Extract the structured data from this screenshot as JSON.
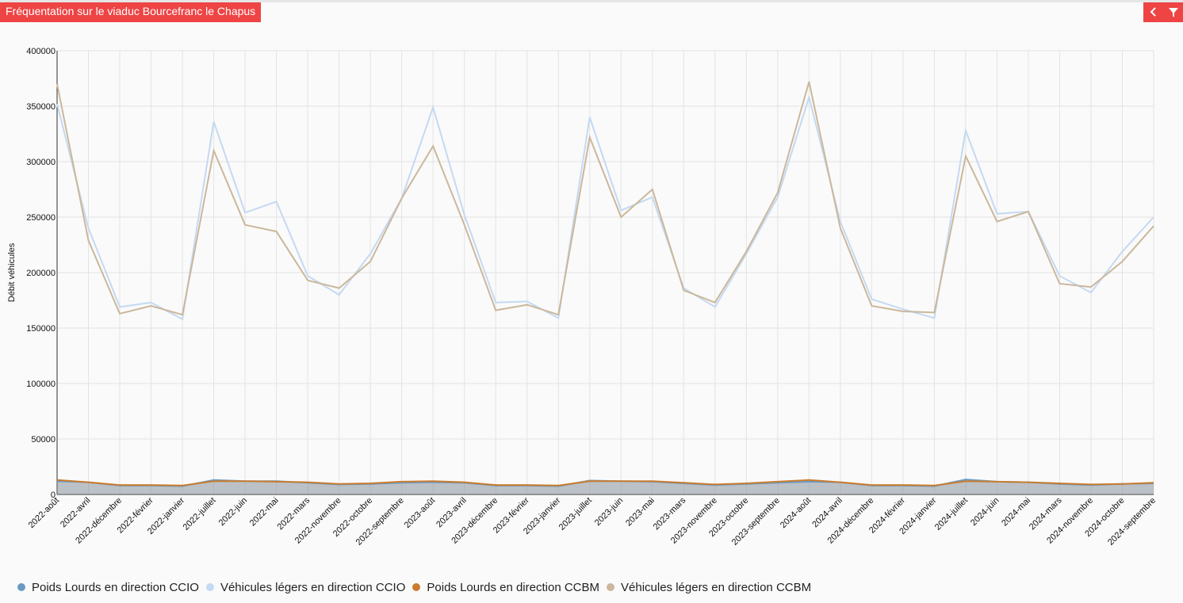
{
  "header": {
    "title": "Fréquentation sur le viaduc Bourcefranc le Chapus",
    "back_icon": "chevron-left-icon",
    "filter_icon": "filter-icon"
  },
  "colors": {
    "accent": "#ee4444",
    "series": [
      "#6a9ac4",
      "#c4d9f2",
      "#c97c2e",
      "#cbb79b"
    ]
  },
  "chart_data": {
    "type": "line",
    "ylabel": "Débit véhicules",
    "xlabel": "",
    "ylim": [
      0,
      400000
    ],
    "yticks": [
      0,
      50000,
      100000,
      150000,
      200000,
      250000,
      300000,
      350000,
      400000
    ],
    "grid": true,
    "legend_position": "bottom",
    "categories": [
      "2022-août",
      "2022-avril",
      "2022-décembre",
      "2022-février",
      "2022-janvier",
      "2022-juillet",
      "2022-juin",
      "2022-mai",
      "2022-mars",
      "2022-novembre",
      "2022-octobre",
      "2022-septembre",
      "2023-août",
      "2023-avril",
      "2023-décembre",
      "2023-février",
      "2023-janvier",
      "2023-juillet",
      "2023-juin",
      "2023-mai",
      "2023-mars",
      "2023-novembre",
      "2023-octobre",
      "2023-septembre",
      "2024-août",
      "2024-avril",
      "2024-décembre",
      "2024-février",
      "2024-janvier",
      "2024-juillet",
      "2024-juin",
      "2024-mai",
      "2024-mars",
      "2024-novembre",
      "2024-octobre",
      "2024-septembre"
    ],
    "series": [
      {
        "name": "Poids Lourds en direction CCIO",
        "values": [
          12000,
          11000,
          8000,
          8000,
          7500,
          13000,
          12000,
          12000,
          10500,
          9000,
          9500,
          10500,
          11000,
          10500,
          8000,
          8000,
          7500,
          12500,
          12000,
          11500,
          10000,
          8500,
          9500,
          10500,
          11500,
          11000,
          8000,
          8000,
          7500,
          13500,
          11500,
          11000,
          9500,
          8500,
          9500,
          10000
        ]
      },
      {
        "name": "Véhicules légers en direction CCIO",
        "values": [
          352000,
          240000,
          169000,
          173000,
          158000,
          336000,
          254000,
          264000,
          197000,
          180000,
          217000,
          267000,
          349000,
          252000,
          173000,
          174000,
          159000,
          340000,
          256000,
          268000,
          186000,
          169000,
          217000,
          268000,
          358000,
          246000,
          176000,
          167000,
          159000,
          328000,
          253000,
          255000,
          197000,
          182000,
          219000,
          250000
        ]
      },
      {
        "name": "Poids Lourds en direction CCBM",
        "values": [
          13000,
          11000,
          8500,
          8500,
          8000,
          12000,
          12000,
          11500,
          11000,
          9500,
          10000,
          11500,
          12000,
          11000,
          8500,
          8500,
          8000,
          12000,
          12000,
          12000,
          10500,
          9000,
          10000,
          11500,
          13000,
          11000,
          8500,
          8500,
          8000,
          12000,
          11500,
          11000,
          10000,
          9000,
          9500,
          10500
        ]
      },
      {
        "name": "Véhicules légers en direction CCBM",
        "values": [
          370000,
          229000,
          163000,
          170000,
          162000,
          310000,
          243000,
          237000,
          193000,
          186000,
          210000,
          267000,
          314000,
          243000,
          166000,
          171000,
          162000,
          322000,
          250000,
          275000,
          184000,
          173000,
          219000,
          272000,
          372000,
          240000,
          170000,
          165000,
          164000,
          305000,
          246000,
          255000,
          190000,
          187000,
          210000,
          242000
        ]
      }
    ]
  }
}
